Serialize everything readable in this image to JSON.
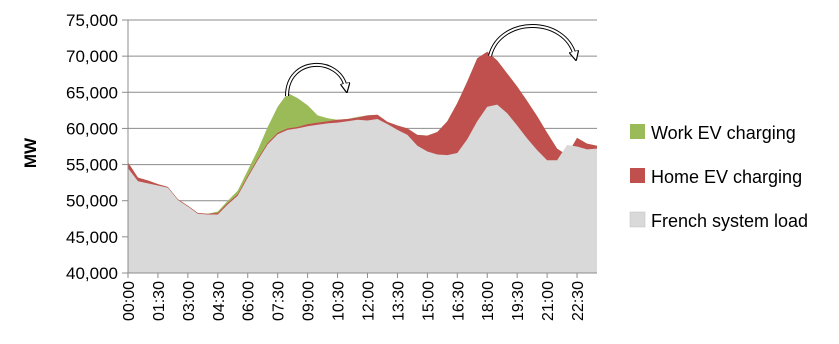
{
  "chart_data": {
    "type": "area",
    "title": "",
    "xlabel": "",
    "ylabel": "MW",
    "ylim": [
      40000,
      75000
    ],
    "yticks": [
      "40,000",
      "45,000",
      "50,000",
      "55,000",
      "60,000",
      "65,000",
      "70,000",
      "75,000"
    ],
    "x_tick_labels": [
      "00:00",
      "01:30",
      "03:00",
      "04:30",
      "06:00",
      "07:30",
      "09:00",
      "10:30",
      "12:00",
      "13:30",
      "15:00",
      "16:30",
      "18:00",
      "19:30",
      "21:00",
      "22:30"
    ],
    "x": [
      "00:00",
      "00:30",
      "01:00",
      "01:30",
      "02:00",
      "02:30",
      "03:00",
      "03:30",
      "04:00",
      "04:30",
      "05:00",
      "05:30",
      "06:00",
      "06:30",
      "07:00",
      "07:30",
      "08:00",
      "08:30",
      "09:00",
      "09:30",
      "10:00",
      "10:30",
      "11:00",
      "11:30",
      "12:00",
      "12:30",
      "13:00",
      "13:30",
      "14:00",
      "14:30",
      "15:00",
      "15:30",
      "16:00",
      "16:30",
      "17:00",
      "17:30",
      "18:00",
      "18:30",
      "19:00",
      "19:30",
      "20:00",
      "20:30",
      "21:00",
      "21:30",
      "22:00",
      "22:30",
      "23:00",
      "23:30"
    ],
    "legend_position": "right",
    "grid": "horizontal",
    "series": [
      {
        "name": "French system load",
        "color": "#d9d9d9",
        "values": [
          54500,
          52700,
          52400,
          52100,
          51800,
          50100,
          49200,
          48200,
          48100,
          48100,
          49500,
          50700,
          53200,
          55600,
          57800,
          59200,
          59800,
          60000,
          60300,
          60500,
          60700,
          60800,
          61000,
          61200,
          61100,
          61300,
          60600,
          59800,
          59100,
          57600,
          56800,
          56400,
          56300,
          56600,
          58500,
          61000,
          63000,
          63300,
          62100,
          60400,
          58600,
          57000,
          55600,
          55600,
          57700,
          57500,
          57100,
          57200
        ]
      },
      {
        "name": "Home EV charging",
        "color": "#c0504d",
        "values": [
          55300,
          53200,
          52800,
          52300,
          51900,
          50200,
          49300,
          48300,
          48200,
          48300,
          49700,
          50900,
          53400,
          55800,
          58000,
          59400,
          60000,
          60200,
          60600,
          60800,
          61000,
          61200,
          61300,
          61500,
          61800,
          61900,
          60900,
          60400,
          60000,
          59100,
          59000,
          59500,
          61000,
          63500,
          66500,
          69700,
          70600,
          69400,
          67600,
          65800,
          63800,
          61700,
          59400,
          57200,
          56300,
          58700,
          57900,
          57600
        ]
      },
      {
        "name": "Work EV charging",
        "color": "#9bbb59",
        "values": [
          55300,
          53200,
          52800,
          52300,
          51900,
          50200,
          49300,
          48300,
          48200,
          48500,
          50000,
          51400,
          54200,
          57000,
          60200,
          63000,
          64900,
          64200,
          63200,
          61800,
          61400,
          61200,
          61300,
          61600,
          61800,
          61900,
          60900,
          60400,
          60000,
          59100,
          59000,
          59500,
          61000,
          63500,
          66500,
          69700,
          70600,
          69400,
          67600,
          65800,
          63800,
          61700,
          59400,
          57200,
          56300,
          58700,
          57900,
          57600
        ]
      }
    ]
  },
  "legend": {
    "work": "Work EV charging",
    "home": "Home EV charging",
    "load": "French system load"
  }
}
